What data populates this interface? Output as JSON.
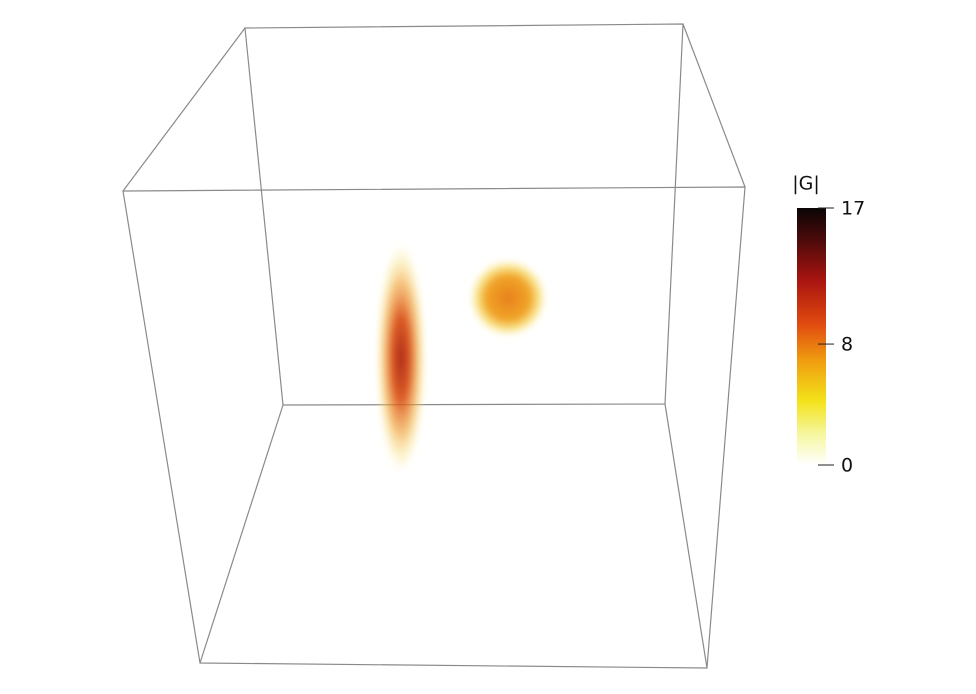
{
  "colorbar": {
    "title": "|G|",
    "range": [
      0,
      17
    ],
    "ticks": [
      0,
      8,
      17
    ]
  }
}
